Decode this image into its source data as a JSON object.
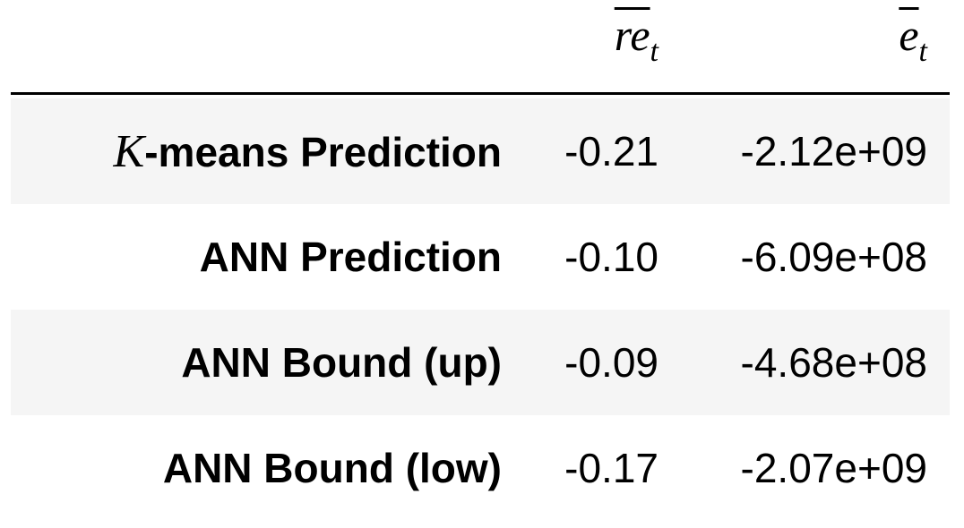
{
  "table": {
    "columns": [
      {
        "base": "re",
        "sub": "t"
      },
      {
        "base": "e",
        "sub": "t"
      }
    ],
    "rows": [
      [
        {
          "math": "K",
          "text": "-means Prediction"
        },
        "-0.21",
        "-2.12e+09"
      ],
      [
        {
          "text": "ANN Prediction"
        },
        "-0.10",
        "-6.09e+08"
      ],
      [
        {
          "text": "ANN Bound (up)"
        },
        "-0.09",
        "-4.68e+08"
      ],
      [
        {
          "text": "ANN Bound (low)"
        },
        "-0.17",
        "-2.07e+09"
      ]
    ]
  }
}
